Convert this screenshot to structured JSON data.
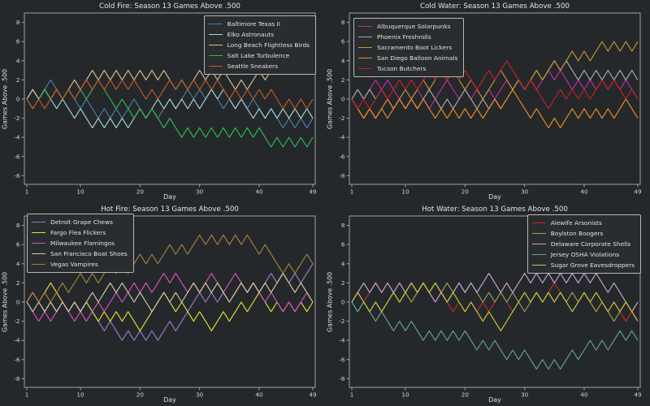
{
  "figure": {
    "background": "#25282b",
    "text_color": "#e0e0e0",
    "spine_color": "#9f9f9f"
  },
  "chart_data": [
    {
      "type": "line",
      "title": "Cold Fire: Season 13 Games Above .500",
      "xlabel": "Day",
      "ylabel": "Games Above .500",
      "x_start": 1,
      "x_ticks": [
        1,
        10,
        20,
        30,
        40,
        49
      ],
      "y_ticks": [
        8,
        6,
        4,
        2,
        0,
        -2,
        -4,
        -6,
        -8
      ],
      "xlim": [
        1,
        49
      ],
      "ylim": [
        -8.8,
        8.8
      ],
      "grid": false,
      "legend_position": "upper right",
      "series": [
        {
          "name": "Baltimore Texas II",
          "color": "#4a7dab",
          "values": [
            0,
            1,
            0,
            1,
            2,
            1,
            0,
            1,
            0,
            -1,
            0,
            -1,
            -2,
            -1,
            -2,
            -1,
            -2,
            -1,
            0,
            -1,
            -2,
            -1,
            -2,
            -1,
            0,
            -1,
            0,
            1,
            0,
            1,
            0,
            1,
            0,
            -1,
            0,
            -1,
            0,
            -1,
            0,
            -1,
            -2,
            -1,
            -2,
            -3,
            -2,
            -3,
            -2,
            -3,
            -2
          ]
        },
        {
          "name": "Elko Astronauts",
          "color": "#a3d6d4",
          "values": [
            0,
            1,
            0,
            1,
            0,
            -1,
            0,
            -1,
            -2,
            -1,
            -2,
            -3,
            -2,
            -3,
            -2,
            -3,
            -2,
            -3,
            -2,
            -1,
            -2,
            -1,
            0,
            -1,
            0,
            -1,
            0,
            -1,
            0,
            -1,
            0,
            1,
            0,
            1,
            0,
            -1,
            0,
            -1,
            -2,
            -1,
            -2,
            -1,
            -2,
            -1,
            -2,
            -1,
            -2,
            -1,
            -2
          ]
        },
        {
          "name": "Long Beach Flightless Birds",
          "color": "#d8bd8f",
          "values": [
            0,
            1,
            0,
            1,
            0,
            1,
            0,
            1,
            2,
            1,
            2,
            3,
            2,
            3,
            2,
            3,
            2,
            3,
            2,
            3,
            2,
            3,
            2,
            3,
            2,
            1,
            2,
            1,
            2,
            3,
            2,
            3,
            2,
            3,
            2,
            1,
            2,
            1,
            2,
            3,
            2,
            3,
            4,
            3,
            4,
            3,
            4,
            3,
            4
          ]
        },
        {
          "name": "Salt Lake Turbulence",
          "color": "#2fba52",
          "values": [
            0,
            -1,
            0,
            1,
            0,
            1,
            0,
            1,
            0,
            1,
            0,
            1,
            2,
            1,
            0,
            -1,
            0,
            -1,
            -2,
            -1,
            -2,
            -1,
            -2,
            -3,
            -2,
            -3,
            -4,
            -3,
            -4,
            -3,
            -4,
            -3,
            -4,
            -3,
            -4,
            -3,
            -4,
            -3,
            -4,
            -3,
            -4,
            -5,
            -4,
            -5,
            -4,
            -5,
            -4,
            -5,
            -4
          ]
        },
        {
          "name": "Seattle Sneakers",
          "color": "#c05a28",
          "values": [
            0,
            -1,
            0,
            -1,
            0,
            1,
            0,
            1,
            0,
            1,
            2,
            1,
            2,
            1,
            2,
            1,
            2,
            1,
            2,
            1,
            0,
            1,
            0,
            1,
            2,
            1,
            2,
            1,
            2,
            1,
            2,
            1,
            2,
            1,
            0,
            1,
            0,
            1,
            0,
            1,
            0,
            1,
            0,
            -1,
            0,
            -1,
            0,
            -1,
            0
          ]
        }
      ]
    },
    {
      "type": "line",
      "title": "Cold Water: Season 13 Games Above .500",
      "xlabel": "Day",
      "ylabel": "Games Above .500",
      "x_start": 1,
      "x_ticks": [
        1,
        10,
        20,
        30,
        40,
        49
      ],
      "y_ticks": [
        8,
        6,
        4,
        2,
        0,
        -2,
        -4,
        -6,
        -8
      ],
      "xlim": [
        1,
        49
      ],
      "ylim": [
        -8.8,
        8.8
      ],
      "grid": false,
      "legend_position": "upper left",
      "series": [
        {
          "name": "Albuquerque Solarpunks",
          "color": "#c428a6",
          "values": [
            0,
            1,
            0,
            1,
            2,
            1,
            2,
            1,
            0,
            -1,
            0,
            1,
            0,
            -1,
            0,
            1,
            2,
            1,
            0,
            1,
            0,
            1,
            0,
            1,
            0,
            1,
            2,
            1,
            2,
            1,
            2,
            1,
            2,
            3,
            2,
            3,
            2,
            1,
            2,
            1,
            2,
            1,
            2,
            1,
            2,
            1,
            2,
            1,
            0
          ]
        },
        {
          "name": "Phoenix Freshrolls",
          "color": "#ababab",
          "values": [
            0,
            1,
            0,
            1,
            0,
            1,
            0,
            -1,
            0,
            -1,
            0,
            -1,
            0,
            1,
            0,
            -1,
            0,
            -1,
            0,
            1,
            0,
            -1,
            0,
            -1,
            0,
            -1,
            0,
            1,
            2,
            1,
            2,
            3,
            2,
            3,
            4,
            3,
            4,
            3,
            2,
            3,
            2,
            3,
            2,
            3,
            2,
            3,
            2,
            3,
            2
          ]
        },
        {
          "name": "Sacramento Boot Lickers",
          "color": "#c7952f",
          "values": [
            0,
            -1,
            -2,
            -1,
            -2,
            -1,
            -2,
            -1,
            0,
            1,
            0,
            1,
            2,
            1,
            2,
            3,
            2,
            3,
            2,
            1,
            2,
            1,
            0,
            1,
            2,
            3,
            2,
            1,
            2,
            1,
            2,
            3,
            2,
            3,
            4,
            3,
            4,
            5,
            4,
            5,
            4,
            5,
            6,
            5,
            6,
            5,
            6,
            5,
            6
          ]
        },
        {
          "name": "San Diego Balloon Animals",
          "color": "#ef8d1f",
          "values": [
            0,
            -1,
            -2,
            -1,
            -2,
            -1,
            0,
            -1,
            0,
            -1,
            0,
            -1,
            0,
            -1,
            -2,
            -1,
            -2,
            -1,
            -2,
            -1,
            -2,
            -1,
            -2,
            -1,
            0,
            -1,
            0,
            1,
            0,
            -1,
            -2,
            -1,
            -2,
            -3,
            -2,
            -3,
            -2,
            -1,
            -2,
            -1,
            -2,
            -1,
            -2,
            -1,
            -2,
            -1,
            0,
            -1,
            -2
          ]
        },
        {
          "name": "Tucson Butchers",
          "color": "#bf2326",
          "values": [
            0,
            -1,
            0,
            -1,
            0,
            1,
            0,
            1,
            2,
            1,
            2,
            1,
            2,
            3,
            2,
            3,
            2,
            3,
            2,
            3,
            2,
            1,
            2,
            3,
            2,
            3,
            4,
            3,
            2,
            1,
            2,
            1,
            0,
            -1,
            0,
            1,
            0,
            1,
            0,
            1,
            0,
            1,
            2,
            1,
            2,
            1,
            0,
            1,
            0
          ]
        }
      ]
    },
    {
      "type": "line",
      "title": "Hot Fire: Season 13 Games Above .500",
      "xlabel": "Day",
      "ylabel": "Games Above .500",
      "x_start": 1,
      "x_ticks": [
        1,
        10,
        20,
        30,
        40,
        49
      ],
      "y_ticks": [
        8,
        6,
        4,
        2,
        0,
        -2,
        -4,
        -6,
        -8
      ],
      "xlim": [
        1,
        49
      ],
      "ylim": [
        -8.8,
        8.8
      ],
      "grid": false,
      "legend_position": "upper left",
      "series": [
        {
          "name": "Detroit Grape Chews",
          "color": "#9a79c9",
          "values": [
            0,
            1,
            0,
            -1,
            0,
            -1,
            0,
            -1,
            0,
            -1,
            0,
            -1,
            -2,
            -3,
            -2,
            -3,
            -4,
            -3,
            -4,
            -3,
            -4,
            -3,
            -4,
            -3,
            -2,
            -3,
            -2,
            -1,
            0,
            1,
            0,
            1,
            0,
            1,
            0,
            1,
            2,
            1,
            2,
            1,
            2,
            3,
            2,
            3,
            2,
            3,
            2,
            3,
            4
          ]
        },
        {
          "name": "Fargo Flea Flickers",
          "color": "#dde22f",
          "values": [
            0,
            1,
            0,
            1,
            2,
            1,
            0,
            -1,
            0,
            -1,
            0,
            -1,
            -2,
            -1,
            -2,
            -1,
            -2,
            -1,
            -2,
            -3,
            -2,
            -1,
            0,
            1,
            0,
            -1,
            0,
            -1,
            -2,
            -1,
            -2,
            -3,
            -2,
            -1,
            -2,
            -1,
            0,
            -1,
            0,
            1,
            0,
            -1,
            0,
            -1,
            0,
            -1,
            0,
            -1,
            0
          ]
        },
        {
          "name": "Milwaukee Flamingos",
          "color": "#d94fc0",
          "values": [
            0,
            -1,
            -2,
            -1,
            -2,
            -1,
            0,
            -1,
            -2,
            -1,
            -2,
            -1,
            0,
            -1,
            0,
            1,
            0,
            1,
            2,
            1,
            2,
            1,
            2,
            3,
            2,
            3,
            2,
            1,
            2,
            1,
            2,
            3,
            2,
            1,
            2,
            3,
            2,
            1,
            2,
            1,
            0,
            1,
            0,
            -1,
            0,
            -1,
            0,
            1,
            0
          ]
        },
        {
          "name": "San Francisco Boat Shoes",
          "color": "#d6c9a3",
          "values": [
            0,
            -1,
            0,
            -1,
            0,
            -1,
            0,
            -1,
            0,
            -1,
            0,
            1,
            0,
            1,
            2,
            1,
            2,
            1,
            0,
            1,
            0,
            -1,
            0,
            1,
            0,
            1,
            0,
            1,
            2,
            1,
            2,
            1,
            2,
            1,
            0,
            1,
            2,
            1,
            2,
            1,
            2,
            1,
            2,
            3,
            2,
            1,
            2,
            1,
            0
          ]
        },
        {
          "name": "Vegas Vampires",
          "color": "#a5813d",
          "values": [
            0,
            1,
            0,
            1,
            0,
            1,
            2,
            1,
            2,
            3,
            2,
            3,
            2,
            3,
            4,
            3,
            4,
            3,
            4,
            5,
            4,
            5,
            4,
            5,
            6,
            5,
            6,
            5,
            6,
            7,
            6,
            7,
            6,
            7,
            6,
            7,
            6,
            7,
            6,
            5,
            6,
            5,
            4,
            3,
            4,
            3,
            4,
            5,
            4
          ]
        }
      ]
    },
    {
      "type": "line",
      "title": "Hot Water: Season 13 Games Above .500",
      "xlabel": "Day",
      "ylabel": "Games Above .500",
      "x_start": 1,
      "x_ticks": [
        1,
        10,
        20,
        30,
        40,
        49
      ],
      "y_ticks": [
        8,
        6,
        4,
        2,
        0,
        -2,
        -4,
        -6,
        -8
      ],
      "xlim": [
        1,
        49
      ],
      "ylim": [
        -8.8,
        8.8
      ],
      "grid": false,
      "legend_position": "upper right",
      "series": [
        {
          "name": "Alewife Arsonists",
          "color": "#c52828",
          "values": [
            0,
            1,
            0,
            1,
            2,
            1,
            2,
            1,
            0,
            1,
            0,
            1,
            2,
            1,
            0,
            1,
            0,
            -1,
            0,
            -1,
            0,
            -1,
            0,
            -1,
            0,
            1,
            0,
            -1,
            0,
            1,
            0,
            1,
            0,
            1,
            2,
            1,
            0,
            1,
            0,
            1,
            0,
            -1,
            0,
            -1,
            0,
            -1,
            -2,
            -1,
            -2
          ]
        },
        {
          "name": "Boylston Boogers",
          "color": "#99a149",
          "values": [
            0,
            -1,
            0,
            -1,
            0,
            -1,
            0,
            1,
            0,
            1,
            0,
            1,
            2,
            1,
            2,
            1,
            2,
            1,
            2,
            1,
            2,
            1,
            0,
            1,
            0,
            1,
            0,
            1,
            0,
            -1,
            0,
            1,
            0,
            1,
            0,
            1,
            0,
            1,
            0,
            1,
            0,
            -1,
            0,
            -1,
            -2,
            -1,
            0,
            -1,
            0
          ]
        },
        {
          "name": "Delaware Corporate Shells",
          "color": "#c9a3d2",
          "values": [
            0,
            1,
            2,
            1,
            2,
            1,
            2,
            1,
            2,
            1,
            2,
            1,
            2,
            1,
            0,
            1,
            0,
            1,
            2,
            1,
            2,
            1,
            2,
            3,
            2,
            1,
            2,
            1,
            2,
            3,
            2,
            3,
            2,
            3,
            2,
            3,
            2,
            3,
            2,
            3,
            2,
            3,
            2,
            1,
            2,
            1,
            0,
            -1,
            0
          ]
        },
        {
          "name": "Jersey OSHA Violations",
          "color": "#60a391",
          "values": [
            0,
            -1,
            0,
            -1,
            -2,
            -1,
            -2,
            -3,
            -2,
            -3,
            -2,
            -3,
            -4,
            -3,
            -4,
            -3,
            -4,
            -3,
            -4,
            -3,
            -4,
            -5,
            -4,
            -5,
            -4,
            -5,
            -6,
            -5,
            -6,
            -5,
            -6,
            -7,
            -6,
            -7,
            -6,
            -7,
            -6,
            -5,
            -6,
            -5,
            -4,
            -5,
            -4,
            -5,
            -4,
            -3,
            -4,
            -3,
            -4
          ]
        },
        {
          "name": "Sugar Grove Eavesdroppers",
          "color": "#c9c83b",
          "values": [
            0,
            1,
            0,
            -1,
            0,
            -1,
            0,
            1,
            0,
            1,
            2,
            1,
            2,
            1,
            2,
            1,
            0,
            1,
            0,
            -1,
            0,
            -1,
            -2,
            -1,
            -2,
            -3,
            -2,
            -1,
            0,
            1,
            0,
            1,
            0,
            1,
            0,
            1,
            0,
            -1,
            0,
            1,
            0,
            1,
            0,
            -1,
            0,
            -1,
            0,
            -1,
            -2
          ]
        }
      ]
    }
  ]
}
